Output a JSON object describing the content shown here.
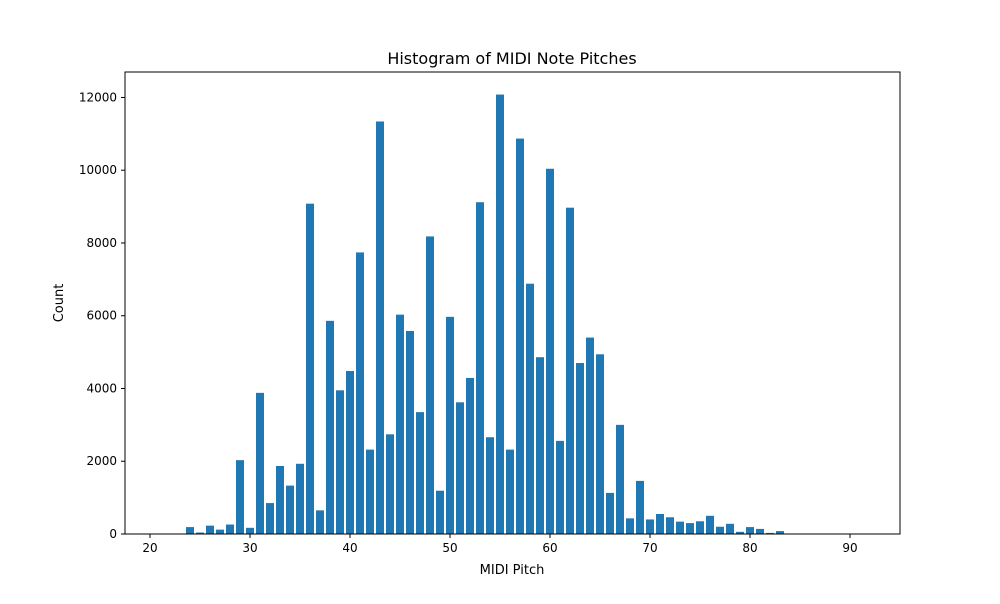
{
  "chart_data": {
    "type": "bar",
    "title": "Histogram of MIDI Note Pitches",
    "xlabel": "MIDI Pitch",
    "ylabel": "Count",
    "xlim": [
      17.5,
      95
    ],
    "ylim": [
      0,
      12700
    ],
    "xticks": [
      20,
      30,
      40,
      50,
      60,
      70,
      80,
      90
    ],
    "yticks": [
      0,
      2000,
      4000,
      6000,
      8000,
      10000,
      12000
    ],
    "grid": false,
    "bar_color": "#1f77b4",
    "x": [
      24,
      25,
      26,
      27,
      28,
      29,
      30,
      31,
      32,
      33,
      34,
      35,
      36,
      37,
      38,
      39,
      40,
      41,
      42,
      43,
      44,
      45,
      46,
      47,
      48,
      49,
      50,
      51,
      52,
      53,
      54,
      55,
      56,
      57,
      58,
      59,
      60,
      61,
      62,
      63,
      64,
      65,
      66,
      67,
      68,
      69,
      70,
      71,
      72,
      73,
      74,
      75,
      76,
      77,
      78,
      79,
      80,
      81,
      82,
      83
    ],
    "values": [
      190,
      40,
      230,
      120,
      260,
      2030,
      170,
      3880,
      850,
      1870,
      1330,
      1930,
      9080,
      650,
      5860,
      3950,
      4480,
      7740,
      2320,
      11340,
      2740,
      6030,
      5580,
      3350,
      8180,
      1190,
      5970,
      3620,
      4290,
      9120,
      2660,
      12080,
      2320,
      10870,
      6880,
      4860,
      10040,
      2560,
      8970,
      4700,
      5400,
      4940,
      1130,
      3000,
      430,
      1460,
      400,
      550,
      460,
      340,
      300,
      350,
      500,
      200,
      280,
      60,
      190,
      140,
      30,
      80
    ]
  }
}
